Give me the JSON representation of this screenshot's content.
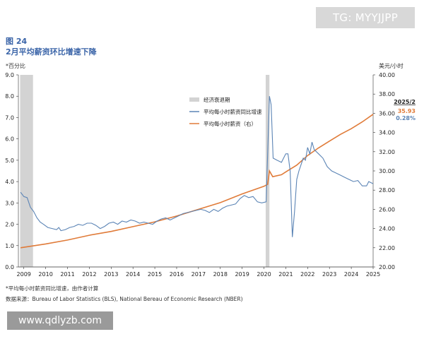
{
  "watermark_top": "TG: MYYJJPP",
  "watermark_bottom": "www.qdlyzb.com",
  "figure_number": "图 24",
  "figure_title": "2月平均薪资环比增速下降",
  "left_unit": "*百分比",
  "right_unit": "美元/小时",
  "footnote": "*平均每小时薪资同比增速，由作者计算",
  "source": "数据来源：Bureau of Labor Statistics (BLS), National Bereau of Economic Research (NBER)",
  "annotation": {
    "period": "2025/2",
    "wage_value": "35.93",
    "growth_value": "0.28%"
  },
  "colors": {
    "title": "#3a64a8",
    "growth": "#5b84b5",
    "wage": "#e07b39",
    "recession": "#d3d3d3"
  },
  "chart_data": {
    "type": "line",
    "x_ticks": [
      "2009",
      "2010",
      "2011",
      "2012",
      "2013",
      "2014",
      "2015",
      "2016",
      "2017",
      "2018",
      "2019",
      "2020",
      "2021",
      "2022",
      "2023",
      "2024",
      "2025"
    ],
    "y_left_ticks": [
      "0.0",
      "1.0",
      "2.0",
      "3.0",
      "4.0",
      "5.0",
      "6.0",
      "7.0",
      "8.0",
      "9.0"
    ],
    "y_right_ticks": [
      "20.00",
      "22.00",
      "24.00",
      "26.00",
      "28.00",
      "30.00",
      "32.00",
      "34.00",
      "36.00",
      "38.00",
      "40.00"
    ],
    "ylim_left": [
      0,
      9
    ],
    "ylim_right": [
      20,
      40
    ],
    "xlim": [
      2008.75,
      2025.0
    ],
    "legend_position": "top-center",
    "legend": [
      {
        "name": "经济衰退期",
        "key": "recession"
      },
      {
        "name": "平均每小时薪资同比增速",
        "key": "growth"
      },
      {
        "name": "平均每小时薪资（右）",
        "key": "wage"
      }
    ],
    "recessions": [
      [
        2008.83,
        2009.42
      ],
      [
        2020.08,
        2020.25
      ]
    ],
    "series": [
      {
        "name": "平均每小时薪资同比增速",
        "axis": "left",
        "points": [
          [
            2008.85,
            3.5
          ],
          [
            2009.0,
            3.3
          ],
          [
            2009.15,
            3.25
          ],
          [
            2009.3,
            2.8
          ],
          [
            2009.45,
            2.6
          ],
          [
            2009.6,
            2.3
          ],
          [
            2009.75,
            2.1
          ],
          [
            2009.9,
            2.0
          ],
          [
            2010.1,
            1.85
          ],
          [
            2010.3,
            1.8
          ],
          [
            2010.5,
            1.75
          ],
          [
            2010.6,
            1.85
          ],
          [
            2010.7,
            1.7
          ],
          [
            2010.9,
            1.75
          ],
          [
            2011.1,
            1.85
          ],
          [
            2011.3,
            1.9
          ],
          [
            2011.5,
            2.0
          ],
          [
            2011.7,
            1.95
          ],
          [
            2011.9,
            2.05
          ],
          [
            2012.1,
            2.05
          ],
          [
            2012.3,
            1.95
          ],
          [
            2012.5,
            1.8
          ],
          [
            2012.7,
            1.9
          ],
          [
            2012.9,
            2.05
          ],
          [
            2013.1,
            2.1
          ],
          [
            2013.3,
            2.0
          ],
          [
            2013.5,
            2.15
          ],
          [
            2013.7,
            2.1
          ],
          [
            2013.9,
            2.2
          ],
          [
            2014.1,
            2.15
          ],
          [
            2014.3,
            2.05
          ],
          [
            2014.5,
            2.1
          ],
          [
            2014.7,
            2.05
          ],
          [
            2014.9,
            2.0
          ],
          [
            2015.1,
            2.15
          ],
          [
            2015.3,
            2.25
          ],
          [
            2015.5,
            2.3
          ],
          [
            2015.7,
            2.2
          ],
          [
            2015.9,
            2.3
          ],
          [
            2016.1,
            2.4
          ],
          [
            2016.3,
            2.5
          ],
          [
            2016.5,
            2.55
          ],
          [
            2016.7,
            2.6
          ],
          [
            2016.9,
            2.65
          ],
          [
            2017.1,
            2.7
          ],
          [
            2017.3,
            2.65
          ],
          [
            2017.5,
            2.55
          ],
          [
            2017.7,
            2.7
          ],
          [
            2017.9,
            2.6
          ],
          [
            2018.1,
            2.75
          ],
          [
            2018.3,
            2.85
          ],
          [
            2018.5,
            2.9
          ],
          [
            2018.7,
            2.95
          ],
          [
            2018.9,
            3.2
          ],
          [
            2019.1,
            3.35
          ],
          [
            2019.3,
            3.25
          ],
          [
            2019.5,
            3.3
          ],
          [
            2019.7,
            3.05
          ],
          [
            2019.9,
            3.0
          ],
          [
            2020.1,
            3.05
          ],
          [
            2020.25,
            8.0
          ],
          [
            2020.33,
            7.6
          ],
          [
            2020.42,
            5.1
          ],
          [
            2020.6,
            5.0
          ],
          [
            2020.8,
            4.9
          ],
          [
            2020.9,
            5.1
          ],
          [
            2021.0,
            5.3
          ],
          [
            2021.1,
            5.3
          ],
          [
            2021.2,
            4.5
          ],
          [
            2021.3,
            1.4
          ],
          [
            2021.4,
            2.6
          ],
          [
            2021.5,
            4.1
          ],
          [
            2021.6,
            4.5
          ],
          [
            2021.7,
            4.8
          ],
          [
            2021.8,
            5.1
          ],
          [
            2021.9,
            5.0
          ],
          [
            2022.0,
            5.6
          ],
          [
            2022.1,
            5.3
          ],
          [
            2022.2,
            5.85
          ],
          [
            2022.3,
            5.5
          ],
          [
            2022.5,
            5.3
          ],
          [
            2022.7,
            5.1
          ],
          [
            2022.9,
            4.7
          ],
          [
            2023.1,
            4.5
          ],
          [
            2023.3,
            4.4
          ],
          [
            2023.5,
            4.3
          ],
          [
            2023.7,
            4.2
          ],
          [
            2023.9,
            4.1
          ],
          [
            2024.1,
            4.0
          ],
          [
            2024.3,
            4.05
          ],
          [
            2024.5,
            3.8
          ],
          [
            2024.7,
            3.8
          ],
          [
            2024.8,
            4.0
          ],
          [
            2025.0,
            3.9
          ]
        ]
      },
      {
        "name": "平均每小时薪资（右）",
        "axis": "right",
        "points": [
          [
            2008.85,
            22.0
          ],
          [
            2010.0,
            22.4
          ],
          [
            2011.0,
            22.8
          ],
          [
            2012.0,
            23.3
          ],
          [
            2013.0,
            23.7
          ],
          [
            2014.0,
            24.2
          ],
          [
            2015.0,
            24.7
          ],
          [
            2016.0,
            25.3
          ],
          [
            2017.0,
            26.0
          ],
          [
            2018.0,
            26.7
          ],
          [
            2019.0,
            27.6
          ],
          [
            2020.0,
            28.4
          ],
          [
            2020.17,
            28.6
          ],
          [
            2020.25,
            30.0
          ],
          [
            2020.4,
            29.4
          ],
          [
            2020.8,
            29.6
          ],
          [
            2021.0,
            29.9
          ],
          [
            2021.5,
            30.6
          ],
          [
            2022.0,
            31.6
          ],
          [
            2022.5,
            32.4
          ],
          [
            2023.0,
            33.1
          ],
          [
            2023.5,
            33.8
          ],
          [
            2024.0,
            34.4
          ],
          [
            2024.5,
            35.1
          ],
          [
            2025.0,
            35.9
          ]
        ]
      }
    ]
  }
}
